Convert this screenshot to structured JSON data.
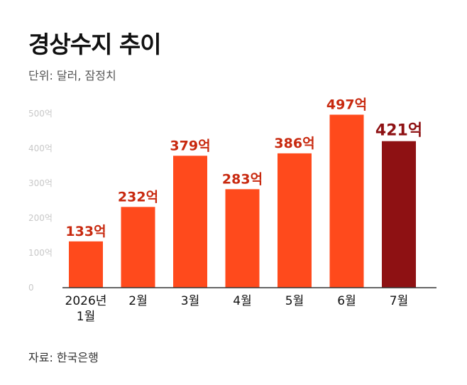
{
  "header": {
    "title": "경상수지 추이",
    "unit": "단위: 달러, 잠정치"
  },
  "footer": {
    "source": "자료: 한국은행"
  },
  "colors": {
    "bar": "#FF4A1C",
    "bar_highlight": "#8E1113",
    "label": "#C8290F",
    "label_highlight": "#8E1113",
    "axis": "#333333",
    "tick_text": "#C8C8C8"
  },
  "chart_data": {
    "type": "bar",
    "categories": [
      [
        "2026년",
        "1월"
      ],
      [
        "2월"
      ],
      [
        "3월"
      ],
      [
        "4월"
      ],
      [
        "5월"
      ],
      [
        "6월"
      ],
      [
        "7월"
      ]
    ],
    "values": [
      133,
      232,
      379,
      283,
      386,
      497,
      421
    ],
    "value_labels": [
      "133억",
      "232억",
      "379억",
      "283억",
      "386억",
      "497억",
      "421억"
    ],
    "highlight_index": 6,
    "ylim": [
      0,
      500
    ],
    "yticks": [
      0,
      100,
      200,
      300,
      400,
      500
    ],
    "ytick_labels": [
      "0",
      "100억",
      "200억",
      "300억",
      "400억",
      "500억"
    ],
    "grid": false
  }
}
